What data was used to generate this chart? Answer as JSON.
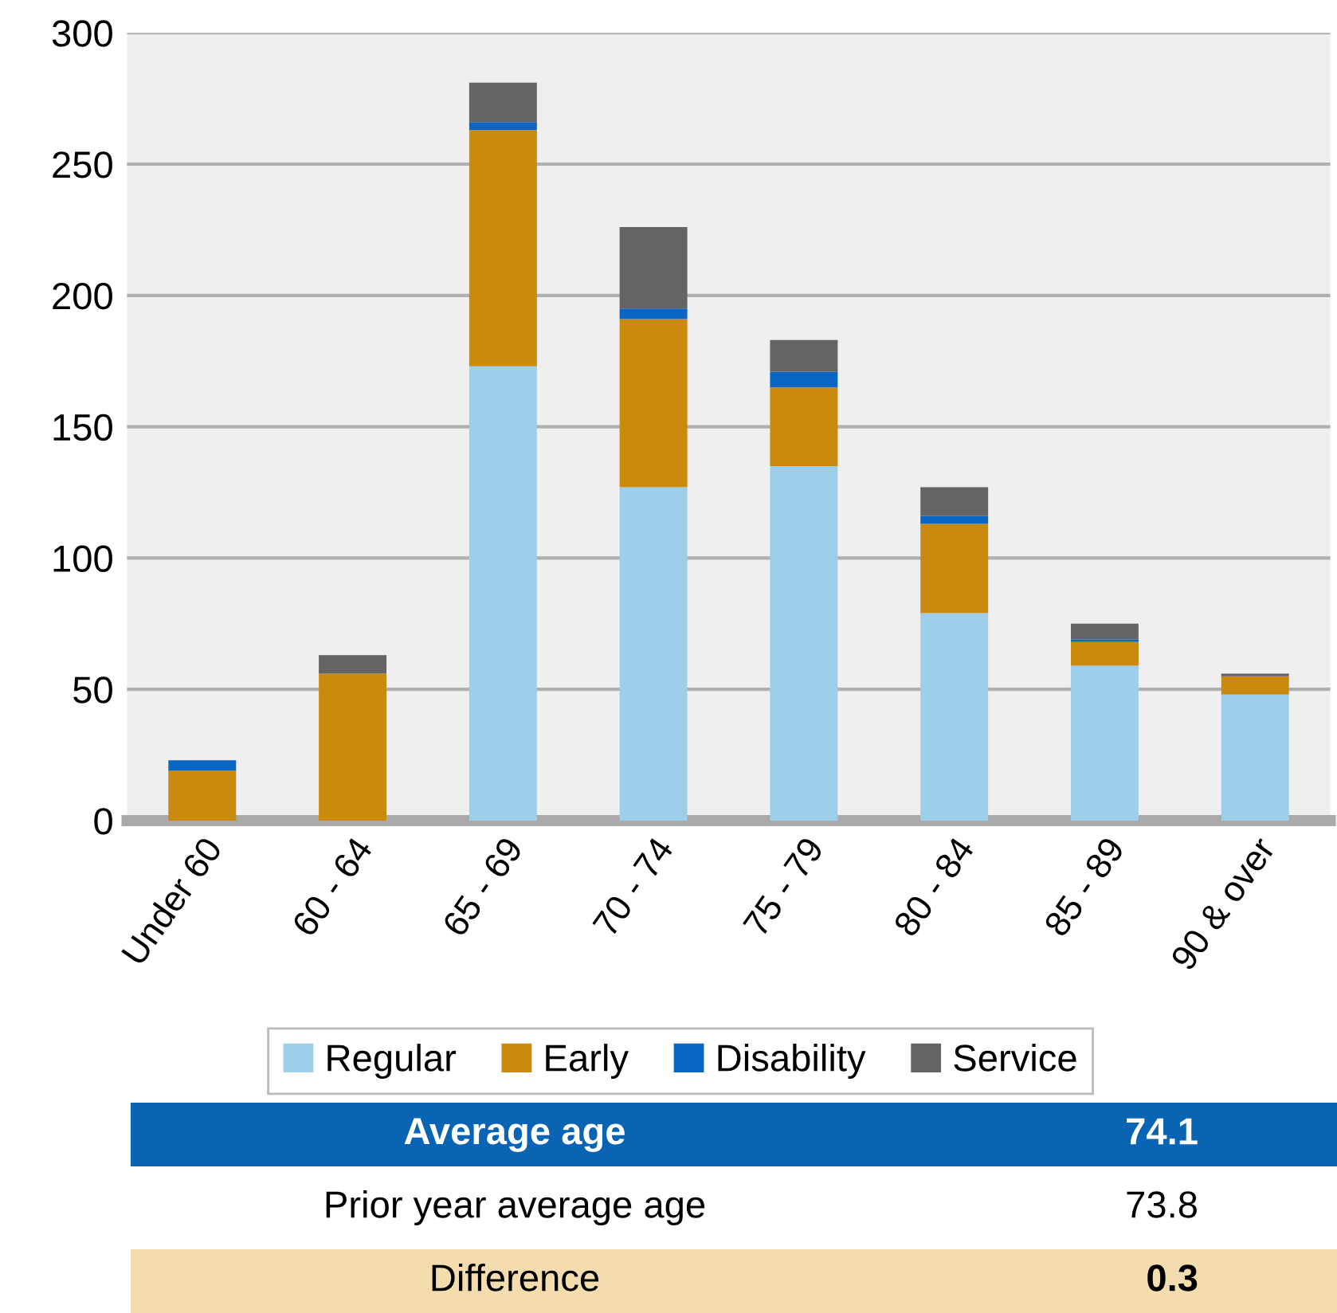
{
  "chart_data": {
    "type": "bar",
    "stacked": true,
    "categories": [
      "Under 60",
      "60 - 64",
      "65 - 69",
      "70 - 74",
      "75 - 79",
      "80 - 84",
      "85 - 89",
      "90 & over"
    ],
    "series": [
      {
        "name": "Regular",
        "color": "#9ecfea",
        "values": [
          0,
          0,
          173,
          127,
          135,
          79,
          59,
          48
        ]
      },
      {
        "name": "Early",
        "color": "#c98a0e",
        "values": [
          19,
          56,
          90,
          64,
          30,
          34,
          9,
          7
        ]
      },
      {
        "name": "Disability",
        "color": "#0a66c2",
        "values": [
          4,
          0,
          3,
          4,
          6,
          3,
          1,
          0
        ]
      },
      {
        "name": "Service",
        "color": "#646464",
        "values": [
          0,
          7,
          15,
          31,
          12,
          11,
          6,
          1
        ]
      }
    ],
    "ylim": [
      0,
      300
    ],
    "yticks": [
      0,
      50,
      100,
      150,
      200,
      250,
      300
    ],
    "grid": "y",
    "legend": "bottom",
    "annotations": [
      "Average age",
      "74.1",
      "Prior year average age",
      "73.8",
      "Difference",
      "0.3"
    ]
  }
}
